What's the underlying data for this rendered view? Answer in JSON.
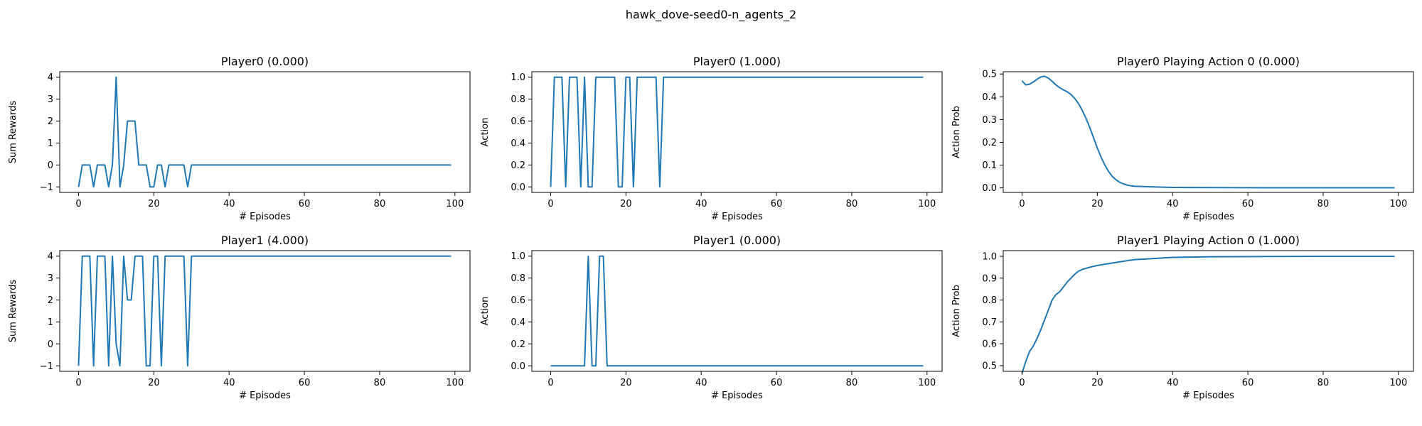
{
  "figure": {
    "suptitle": "hawk_dove-seed0-n_agents_2"
  },
  "colors": {
    "line": "#1f77b4",
    "axes": "#000000",
    "background": "#ffffff"
  },
  "chart_data": [
    {
      "type": "line",
      "title": "Player0 (0.000)",
      "xlabel": "# Episodes",
      "ylabel": "Sum Rewards",
      "xlim": [
        -5,
        104
      ],
      "ylim": [
        -1.25,
        4.25
      ],
      "xticks": [
        0,
        20,
        40,
        60,
        80,
        100
      ],
      "yticks": [
        -1,
        0,
        1,
        2,
        3,
        4
      ],
      "grid": false,
      "series": [
        {
          "points": [
            [
              0,
              -1
            ],
            [
              1,
              0
            ],
            [
              2,
              0
            ],
            [
              3,
              0
            ],
            [
              4,
              -1
            ],
            [
              5,
              0
            ],
            [
              6,
              0
            ],
            [
              7,
              0
            ],
            [
              8,
              -1
            ],
            [
              9,
              0
            ],
            [
              10,
              4
            ],
            [
              11,
              -1
            ],
            [
              12,
              0
            ],
            [
              13,
              2
            ],
            [
              14,
              2
            ],
            [
              15,
              2
            ],
            [
              16,
              0
            ],
            [
              17,
              0
            ],
            [
              18,
              0
            ],
            [
              19,
              -1
            ],
            [
              20,
              -1
            ],
            [
              21,
              0
            ],
            [
              22,
              0
            ],
            [
              23,
              -1
            ],
            [
              24,
              0
            ],
            [
              25,
              0
            ],
            [
              26,
              0
            ],
            [
              27,
              0
            ],
            [
              28,
              0
            ],
            [
              29,
              -1
            ],
            [
              30,
              0
            ],
            [
              99,
              0
            ]
          ]
        }
      ]
    },
    {
      "type": "line",
      "title": "Player0 (1.000)",
      "xlabel": "# Episodes",
      "ylabel": "Action",
      "xlim": [
        -5,
        104
      ],
      "ylim": [
        -0.05,
        1.05
      ],
      "xticks": [
        0,
        20,
        40,
        60,
        80,
        100
      ],
      "yticks": [
        0.0,
        0.2,
        0.4,
        0.6,
        0.8,
        1.0
      ],
      "ytick_decimals": 1,
      "grid": false,
      "series": [
        {
          "points": [
            [
              0,
              0
            ],
            [
              1,
              1
            ],
            [
              2,
              1
            ],
            [
              3,
              1
            ],
            [
              4,
              0
            ],
            [
              5,
              1
            ],
            [
              6,
              1
            ],
            [
              7,
              1
            ],
            [
              8,
              0
            ],
            [
              9,
              1
            ],
            [
              10,
              0
            ],
            [
              11,
              0
            ],
            [
              12,
              1
            ],
            [
              13,
              1
            ],
            [
              14,
              1
            ],
            [
              15,
              1
            ],
            [
              16,
              1
            ],
            [
              17,
              1
            ],
            [
              18,
              0
            ],
            [
              19,
              0
            ],
            [
              20,
              1
            ],
            [
              21,
              1
            ],
            [
              22,
              0
            ],
            [
              23,
              1
            ],
            [
              24,
              1
            ],
            [
              25,
              1
            ],
            [
              26,
              1
            ],
            [
              27,
              1
            ],
            [
              28,
              1
            ],
            [
              29,
              0
            ],
            [
              30,
              1
            ],
            [
              99,
              1
            ]
          ]
        }
      ]
    },
    {
      "type": "line",
      "title": "Player0 Playing Action 0 (0.000)",
      "xlabel": "# Episodes",
      "ylabel": "Action Prob",
      "xlim": [
        -5,
        104
      ],
      "ylim": [
        -0.02,
        0.51
      ],
      "xticks": [
        0,
        20,
        40,
        60,
        80,
        100
      ],
      "yticks": [
        0.0,
        0.1,
        0.2,
        0.3,
        0.4,
        0.5
      ],
      "ytick_decimals": 1,
      "grid": false,
      "series": [
        {
          "points": [
            [
              0,
              0.47
            ],
            [
              1,
              0.452
            ],
            [
              2,
              0.455
            ],
            [
              3,
              0.465
            ],
            [
              4,
              0.477
            ],
            [
              5,
              0.487
            ],
            [
              6,
              0.49
            ],
            [
              7,
              0.482
            ],
            [
              8,
              0.468
            ],
            [
              9,
              0.452
            ],
            [
              10,
              0.44
            ],
            [
              11,
              0.43
            ],
            [
              12,
              0.422
            ],
            [
              13,
              0.41
            ],
            [
              14,
              0.393
            ],
            [
              15,
              0.37
            ],
            [
              16,
              0.34
            ],
            [
              17,
              0.305
            ],
            [
              18,
              0.265
            ],
            [
              19,
              0.22
            ],
            [
              20,
              0.175
            ],
            [
              21,
              0.135
            ],
            [
              22,
              0.1
            ],
            [
              23,
              0.072
            ],
            [
              24,
              0.05
            ],
            [
              25,
              0.035
            ],
            [
              26,
              0.024
            ],
            [
              27,
              0.017
            ],
            [
              28,
              0.012
            ],
            [
              29,
              0.009
            ],
            [
              30,
              0.007
            ],
            [
              35,
              0.004
            ],
            [
              40,
              0.002
            ],
            [
              50,
              0.001
            ],
            [
              60,
              0.0005
            ],
            [
              80,
              0.0002
            ],
            [
              99,
              0.0001
            ]
          ]
        }
      ]
    },
    {
      "type": "line",
      "title": "Player1 (4.000)",
      "xlabel": "# Episodes",
      "ylabel": "Sum Rewards",
      "xlim": [
        -5,
        104
      ],
      "ylim": [
        -1.25,
        4.25
      ],
      "xticks": [
        0,
        20,
        40,
        60,
        80,
        100
      ],
      "yticks": [
        -1,
        0,
        1,
        2,
        3,
        4
      ],
      "grid": false,
      "series": [
        {
          "points": [
            [
              0,
              -1
            ],
            [
              1,
              4
            ],
            [
              2,
              4
            ],
            [
              3,
              4
            ],
            [
              4,
              -1
            ],
            [
              5,
              4
            ],
            [
              6,
              4
            ],
            [
              7,
              4
            ],
            [
              8,
              -1
            ],
            [
              9,
              4
            ],
            [
              10,
              0
            ],
            [
              11,
              -1
            ],
            [
              12,
              4
            ],
            [
              13,
              2
            ],
            [
              14,
              2
            ],
            [
              15,
              4
            ],
            [
              16,
              4
            ],
            [
              17,
              4
            ],
            [
              18,
              -1
            ],
            [
              19,
              -1
            ],
            [
              20,
              4
            ],
            [
              21,
              4
            ],
            [
              22,
              -1
            ],
            [
              23,
              4
            ],
            [
              24,
              4
            ],
            [
              25,
              4
            ],
            [
              26,
              4
            ],
            [
              27,
              4
            ],
            [
              28,
              4
            ],
            [
              29,
              -1
            ],
            [
              30,
              4
            ],
            [
              99,
              4
            ]
          ]
        }
      ]
    },
    {
      "type": "line",
      "title": "Player1 (0.000)",
      "xlabel": "# Episodes",
      "ylabel": "Action",
      "xlim": [
        -5,
        104
      ],
      "ylim": [
        -0.05,
        1.05
      ],
      "xticks": [
        0,
        20,
        40,
        60,
        80,
        100
      ],
      "yticks": [
        0.0,
        0.2,
        0.4,
        0.6,
        0.8,
        1.0
      ],
      "ytick_decimals": 1,
      "grid": false,
      "series": [
        {
          "points": [
            [
              0,
              0
            ],
            [
              9,
              0
            ],
            [
              10,
              1
            ],
            [
              11,
              0
            ],
            [
              12,
              0
            ],
            [
              13,
              1
            ],
            [
              14,
              1
            ],
            [
              15,
              0
            ],
            [
              99,
              0
            ]
          ]
        }
      ]
    },
    {
      "type": "line",
      "title": "Player1 Playing Action 0 (1.000)",
      "xlabel": "# Episodes",
      "ylabel": "Action Prob",
      "xlim": [
        -5,
        104
      ],
      "ylim": [
        0.474,
        1.026
      ],
      "xticks": [
        0,
        20,
        40,
        60,
        80,
        100
      ],
      "yticks": [
        0.5,
        0.6,
        0.7,
        0.8,
        0.9,
        1.0
      ],
      "ytick_decimals": 1,
      "grid": false,
      "series": [
        {
          "points": [
            [
              0,
              0.465
            ],
            [
              1,
              0.52
            ],
            [
              2,
              0.565
            ],
            [
              3,
              0.59
            ],
            [
              4,
              0.625
            ],
            [
              5,
              0.665
            ],
            [
              6,
              0.71
            ],
            [
              7,
              0.755
            ],
            [
              8,
              0.8
            ],
            [
              9,
              0.825
            ],
            [
              10,
              0.838
            ],
            [
              11,
              0.86
            ],
            [
              12,
              0.882
            ],
            [
              13,
              0.9
            ],
            [
              14,
              0.918
            ],
            [
              15,
              0.932
            ],
            [
              16,
              0.94
            ],
            [
              18,
              0.95
            ],
            [
              20,
              0.958
            ],
            [
              22,
              0.964
            ],
            [
              25,
              0.972
            ],
            [
              28,
              0.98
            ],
            [
              30,
              0.985
            ],
            [
              35,
              0.99
            ],
            [
              40,
              0.995
            ],
            [
              50,
              0.998
            ],
            [
              60,
              0.999
            ],
            [
              80,
              1.0
            ],
            [
              99,
              1.0
            ]
          ]
        }
      ]
    }
  ]
}
